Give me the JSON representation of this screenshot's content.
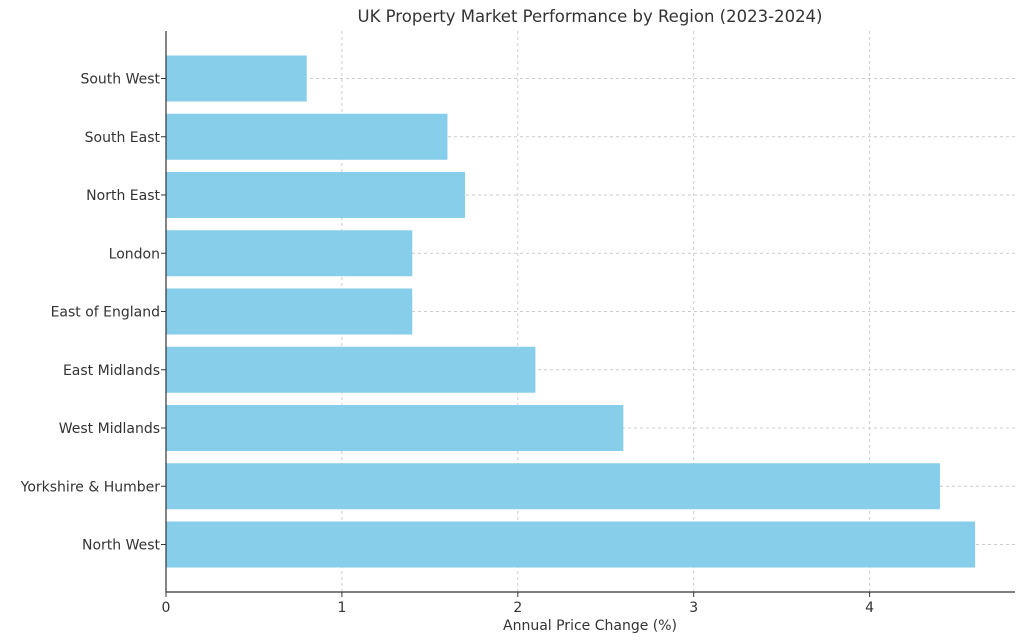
{
  "chart_data": {
    "type": "bar",
    "orientation": "horizontal",
    "title": "UK Property Market Performance by Region (2023-2024)",
    "xlabel": "Annual Price Change (%)",
    "ylabel": "",
    "categories": [
      "North West",
      "Yorkshire & Humber",
      "West Midlands",
      "East Midlands",
      "East of England",
      "London",
      "North East",
      "South East",
      "South West"
    ],
    "values": [
      4.6,
      4.4,
      2.6,
      2.1,
      1.4,
      1.4,
      1.7,
      1.6,
      0.8
    ],
    "xlim": [
      0,
      4.8
    ],
    "xticks": [
      0,
      1,
      2,
      3,
      4
    ],
    "grid": true,
    "bar_color": "#87ceeb"
  }
}
